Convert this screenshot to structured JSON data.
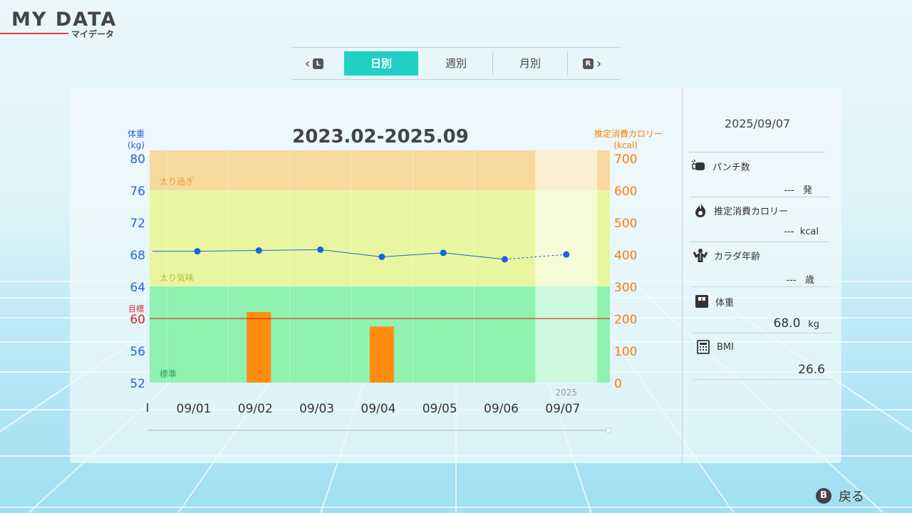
{
  "header": {
    "title": "MY DATA",
    "subtitle": "マイデータ"
  },
  "tabs": {
    "prev_button": "L",
    "next_button": "R",
    "items": [
      {
        "label": "日別",
        "active": true
      },
      {
        "label": "週別",
        "active": false
      },
      {
        "label": "月別",
        "active": false
      }
    ]
  },
  "chart_data": {
    "type": "line",
    "title": "2023.02-2025.09",
    "left_axis_label": [
      "体重",
      "(kg)"
    ],
    "right_axis_label": [
      "推定消費カロリー",
      "(kcal)"
    ],
    "left_ticks": [
      80,
      76,
      72,
      68,
      64,
      60,
      56,
      52
    ],
    "right_ticks": [
      700,
      600,
      500,
      400,
      300,
      200,
      100,
      0
    ],
    "ylim_left": [
      52,
      81
    ],
    "ylim_right": [
      0,
      725
    ],
    "categories": [
      "09/01",
      "09/02",
      "09/03",
      "09/04",
      "09/05",
      "09/06",
      "09/07"
    ],
    "year_label": "2025",
    "weight_series": {
      "values": [
        68.4,
        68.5,
        68.6,
        67.7,
        68.2,
        67.4,
        68.0
      ],
      "color": "#1565e0"
    },
    "calorie_series": {
      "values": [
        0,
        220,
        0,
        175,
        0,
        0,
        0
      ],
      "color": "#ff8c10"
    },
    "target": {
      "label": "目標",
      "value": 60,
      "color": "#e02020"
    },
    "zones": [
      {
        "label": "太り過ぎ",
        "from": 76,
        "to": 81,
        "color": "#f7d99e",
        "text_color": "#e8a040"
      },
      {
        "label": "太り気味",
        "from": 64,
        "to": 76,
        "color": "#e9f6a0",
        "text_color": "#b8b840"
      },
      {
        "label": "標準",
        "from": 52,
        "to": 64,
        "color": "#8ff2b0",
        "text_color": "#30a050"
      }
    ]
  },
  "side_panel": {
    "date": "2025/09/07",
    "items": [
      {
        "icon": "punch-icon",
        "label": "パンチ数",
        "value": "---",
        "unit": "発"
      },
      {
        "icon": "flame-icon",
        "label": "推定消費カロリー",
        "value": "---",
        "unit": "kcal"
      },
      {
        "icon": "muscle-icon",
        "label": "カラダ年齢",
        "value": "---",
        "unit": "歳"
      },
      {
        "icon": "scale-icon",
        "label": "体重",
        "value": "68.0",
        "unit": "kg"
      },
      {
        "icon": "calculator-icon",
        "label": "BMI",
        "value": "26.6",
        "unit": ""
      }
    ]
  },
  "footer": {
    "button": "B",
    "label": "戻る"
  }
}
